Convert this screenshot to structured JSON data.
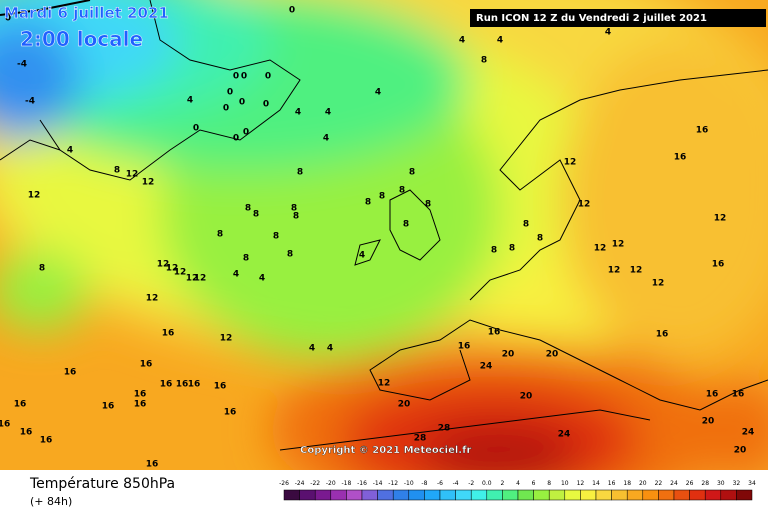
{
  "header": {
    "valid_date": "Mardi 6 juillet 2021",
    "local_time": "2:00 locale",
    "run": "Run ICON 12 Z du Vendredi 2 juillet 2021"
  },
  "copyright": "Copyright © 2021 Meteociel.fr",
  "footer": {
    "title": "Température 850hPa",
    "lead": "(+ 84h)"
  },
  "colorbar": {
    "ticks": [
      -26,
      -24,
      -22,
      -20,
      -18,
      -16,
      -14,
      -12,
      -10,
      -8,
      -6,
      -4,
      -2,
      {
        "value": 0,
        "label": "0.0"
      },
      2,
      4,
      6,
      8,
      10,
      12,
      14,
      16,
      18,
      20,
      22,
      24,
      26,
      28,
      30,
      32,
      34
    ],
    "colors": [
      "#3a0a40",
      "#5a1070",
      "#7a1a90",
      "#9a30b0",
      "#b050c8",
      "#8060d8",
      "#5070e0",
      "#3080e8",
      "#2090f0",
      "#20a8f8",
      "#30c0f8",
      "#40d8f8",
      "#40f0e8",
      "#40f0b0",
      "#50f080",
      "#70e850",
      "#98f040",
      "#c0f040",
      "#e8f840",
      "#f8f040",
      "#f8d840",
      "#f8c030",
      "#f8a820",
      "#f89010",
      "#f07010",
      "#e85010",
      "#e03010",
      "#d01818",
      "#b01010",
      "#800808"
    ]
  },
  "contour_labels": [
    0,
    -4,
    -4,
    4,
    8,
    12,
    12,
    12,
    8,
    12,
    12,
    12,
    12,
    12,
    12,
    16,
    12,
    16,
    16,
    16,
    16,
    16,
    16,
    16,
    16,
    16,
    16,
    16,
    16,
    16,
    16,
    16,
    0,
    4,
    4,
    8,
    0,
    0,
    0,
    0,
    0,
    0,
    4,
    0,
    0,
    0,
    0,
    4,
    4,
    4,
    4,
    8,
    8,
    8,
    8,
    8,
    8,
    8,
    8,
    8,
    8,
    4,
    4,
    4,
    8,
    8,
    8,
    8,
    8,
    8,
    8,
    8,
    8,
    12,
    12,
    12,
    12,
    12,
    12,
    12,
    12,
    16,
    16,
    16,
    16,
    16,
    16,
    20,
    24,
    20,
    16,
    16,
    20,
    24,
    20,
    20,
    20,
    12,
    4,
    4,
    28,
    28,
    24,
    4
  ]
}
